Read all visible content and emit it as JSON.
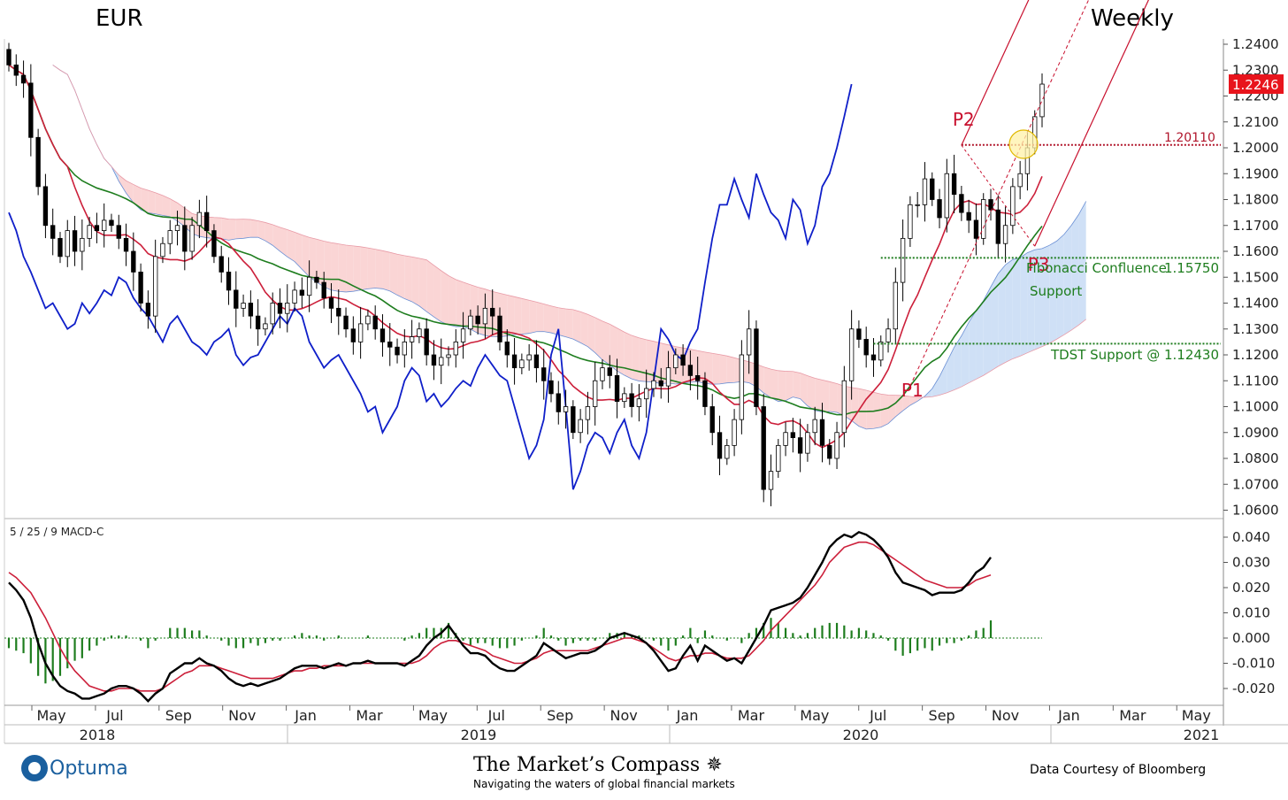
{
  "header": {
    "symbol": "EUR",
    "period": "Weekly"
  },
  "footer": {
    "logo": "Optuma",
    "brand_title": "The Market’s Compass",
    "brand_subtitle": "Navigating the waters of global financial markets",
    "credit": "Data Courtesy of Bloomberg"
  },
  "colors": {
    "price_up": "#ffffff",
    "price_down": "#000000",
    "tenkan": "#cc1f3a",
    "kijun": "#1e7d1e",
    "chikou": "#0f1fc9",
    "cloud_bull": "#cfe0f6",
    "cloud_bear": "#fad5d5",
    "pitchfork": "#c8102e",
    "macd_line": "#000000",
    "signal_line": "#cc1f3a",
    "histogram": "#1e7d1e",
    "last_price_bg": "#e8141c"
  },
  "chart_data": [
    {
      "type": "candlestick",
      "title": "EUR",
      "period": "Weekly",
      "ylim": [
        1.058,
        1.243
      ],
      "yticks": [
        "1.0600",
        "1.0700",
        "1.0800",
        "1.0900",
        "1.1000",
        "1.1100",
        "1.1200",
        "1.1300",
        "1.1400",
        "1.1500",
        "1.1600",
        "1.1700",
        "1.1800",
        "1.1900",
        "1.2000",
        "1.2100",
        "1.2200",
        "1.2300",
        "1.2400"
      ],
      "x_month_labels": [
        "May",
        "Jul",
        "Sep",
        "Nov",
        "Jan",
        "Mar",
        "May",
        "Jul",
        "Sep",
        "Nov",
        "Jan",
        "Mar",
        "May",
        "Jul",
        "Sep",
        "Nov",
        "Jan",
        "Mar",
        "May"
      ],
      "x_year_labels": [
        "2018",
        "2019",
        "2020",
        "2021"
      ],
      "x_range": [
        "2018-04",
        "2021-06"
      ],
      "last_price": "1.2246",
      "candles_close": [
        1.232,
        1.228,
        1.225,
        1.204,
        1.185,
        1.17,
        1.165,
        1.158,
        1.168,
        1.16,
        1.165,
        1.17,
        1.168,
        1.172,
        1.17,
        1.165,
        1.16,
        1.152,
        1.14,
        1.135,
        1.158,
        1.163,
        1.168,
        1.17,
        1.16,
        1.17,
        1.175,
        1.168,
        1.158,
        1.152,
        1.145,
        1.138,
        1.14,
        1.135,
        1.13,
        1.132,
        1.14,
        1.136,
        1.14,
        1.145,
        1.143,
        1.15,
        1.148,
        1.142,
        1.138,
        1.135,
        1.13,
        1.125,
        1.132,
        1.135,
        1.13,
        1.125,
        1.123,
        1.12,
        1.125,
        1.127,
        1.13,
        1.12,
        1.116,
        1.119,
        1.12,
        1.125,
        1.13,
        1.135,
        1.132,
        1.138,
        1.135,
        1.125,
        1.12,
        1.115,
        1.118,
        1.12,
        1.115,
        1.11,
        1.105,
        1.098,
        1.1,
        1.09,
        1.095,
        1.1,
        1.11,
        1.115,
        1.112,
        1.102,
        1.105,
        1.1,
        1.103,
        1.107,
        1.11,
        1.108,
        1.115,
        1.12,
        1.116,
        1.112,
        1.11,
        1.1,
        1.09,
        1.08,
        1.085,
        1.095,
        1.12,
        1.13,
        1.1,
        1.068,
        1.075,
        1.085,
        1.09,
        1.088,
        1.082,
        1.09,
        1.095,
        1.085,
        1.08,
        1.09,
        1.11,
        1.13,
        1.126,
        1.12,
        1.118,
        1.125,
        1.13,
        1.148,
        1.165,
        1.178,
        1.178,
        1.188,
        1.18,
        1.173,
        1.19,
        1.182,
        1.175,
        1.172,
        1.165,
        1.18,
        1.176,
        1.163,
        1.17,
        1.185,
        1.19,
        1.2,
        1.212,
        1.2246
      ],
      "ichimoku": {
        "tenkan_sen": "red line",
        "kijun_sen": "green line",
        "chikou_span": "blue line",
        "cloud": "blue (bullish) / red (bearish) shaded area"
      },
      "annotations": [
        {
          "text": "P1",
          "kind": "pitchfork pivot"
        },
        {
          "text": "P2",
          "kind": "pitchfork pivot"
        },
        {
          "text": "P3",
          "kind": "pitchfork pivot"
        },
        {
          "text": "1.20110",
          "kind": "horizontal level",
          "value": 1.2011
        },
        {
          "text": "Fibonacci Confluence",
          "kind": "support label"
        },
        {
          "text": "Support",
          "kind": "support label"
        },
        {
          "text": "1.15750",
          "kind": "horizontal level",
          "value": 1.1575
        },
        {
          "text": "TDST Support @ 1.12430",
          "kind": "horizontal level",
          "value": 1.1243
        }
      ]
    },
    {
      "type": "line",
      "title": "5 / 25 / 9 MACD-C",
      "ylim": [
        -0.027,
        0.047
      ],
      "yticks": [
        "0.040",
        "0.030",
        "0.020",
        "0.010",
        "0.000",
        "-0.010",
        "-0.020"
      ],
      "series": [
        {
          "name": "MACD",
          "role": "macd",
          "values": [
            0.022,
            0.019,
            0.015,
            0.008,
            -0.002,
            -0.01,
            -0.015,
            -0.019,
            -0.021,
            -0.022,
            -0.024,
            -0.024,
            -0.023,
            -0.022,
            -0.02,
            -0.019,
            -0.019,
            -0.02,
            -0.022,
            -0.025,
            -0.022,
            -0.02,
            -0.014,
            -0.012,
            -0.01,
            -0.01,
            -0.008,
            -0.01,
            -0.011,
            -0.013,
            -0.016,
            -0.018,
            -0.019,
            -0.018,
            -0.019,
            -0.018,
            -0.017,
            -0.016,
            -0.014,
            -0.012,
            -0.011,
            -0.011,
            -0.011,
            -0.012,
            -0.011,
            -0.01,
            -0.011,
            -0.01,
            -0.01,
            -0.009,
            -0.01,
            -0.01,
            -0.01,
            -0.01,
            -0.011,
            -0.009,
            -0.007,
            -0.003,
            -0.0,
            0.002,
            0.005,
            0.001,
            -0.003,
            -0.006,
            -0.006,
            -0.007,
            -0.01,
            -0.012,
            -0.013,
            -0.013,
            -0.011,
            -0.009,
            -0.007,
            -0.002,
            -0.004,
            -0.006,
            -0.008,
            -0.007,
            -0.006,
            -0.006,
            -0.005,
            -0.003,
            -0.0,
            0.001,
            0.002,
            0.001,
            -0.0,
            -0.002,
            -0.005,
            -0.009,
            -0.013,
            -0.012,
            -0.007,
            -0.003,
            -0.009,
            -0.003,
            -0.005,
            -0.007,
            -0.009,
            -0.008,
            -0.01,
            -0.005,
            0.0,
            0.005,
            0.011,
            0.012,
            0.013,
            0.014,
            0.016,
            0.02,
            0.025,
            0.03,
            0.036,
            0.039,
            0.041,
            0.04,
            0.042,
            0.041,
            0.039,
            0.036,
            0.032,
            0.026,
            0.022,
            0.021,
            0.02,
            0.019,
            0.017,
            0.018,
            0.018,
            0.018,
            0.019,
            0.022,
            0.026,
            0.028,
            0.032
          ]
        },
        {
          "name": "Signal",
          "role": "signal",
          "values": [
            0.026,
            0.024,
            0.021,
            0.018,
            0.013,
            0.008,
            0.002,
            -0.004,
            -0.009,
            -0.013,
            -0.016,
            -0.019,
            -0.02,
            -0.021,
            -0.021,
            -0.02,
            -0.02,
            -0.02,
            -0.021,
            -0.021,
            -0.021,
            -0.02,
            -0.018,
            -0.016,
            -0.014,
            -0.013,
            -0.011,
            -0.011,
            -0.011,
            -0.012,
            -0.013,
            -0.014,
            -0.015,
            -0.016,
            -0.016,
            -0.016,
            -0.016,
            -0.015,
            -0.014,
            -0.013,
            -0.013,
            -0.012,
            -0.012,
            -0.011,
            -0.011,
            -0.011,
            -0.011,
            -0.01,
            -0.01,
            -0.01,
            -0.01,
            -0.01,
            -0.01,
            -0.01,
            -0.01,
            -0.01,
            -0.009,
            -0.007,
            -0.004,
            -0.002,
            -0.001,
            -0.001,
            -0.002,
            -0.003,
            -0.004,
            -0.005,
            -0.007,
            -0.008,
            -0.009,
            -0.01,
            -0.01,
            -0.009,
            -0.008,
            -0.006,
            -0.005,
            -0.005,
            -0.005,
            -0.005,
            -0.005,
            -0.005,
            -0.004,
            -0.003,
            -0.002,
            -0.001,
            -0.0,
            -0.0,
            -0.001,
            -0.002,
            -0.004,
            -0.006,
            -0.008,
            -0.009,
            -0.008,
            -0.007,
            -0.007,
            -0.006,
            -0.006,
            -0.007,
            -0.008,
            -0.008,
            -0.008,
            -0.007,
            -0.004,
            -0.001,
            0.003,
            0.006,
            0.009,
            0.012,
            0.015,
            0.018,
            0.021,
            0.025,
            0.03,
            0.033,
            0.036,
            0.037,
            0.038,
            0.038,
            0.037,
            0.035,
            0.033,
            0.031,
            0.029,
            0.027,
            0.025,
            0.023,
            0.022,
            0.021,
            0.02,
            0.02,
            0.02,
            0.021,
            0.023,
            0.024,
            0.025
          ]
        },
        {
          "name": "Histogram",
          "role": "histogram",
          "values": [
            -0.004,
            -0.005,
            -0.006,
            -0.01,
            -0.015,
            -0.018,
            -0.017,
            -0.015,
            -0.012,
            -0.009,
            -0.008,
            -0.005,
            -0.003,
            -0.001,
            0.001,
            0.001,
            0.001,
            0.0,
            -0.001,
            -0.004,
            -0.001,
            0.0,
            0.004,
            0.004,
            0.004,
            0.003,
            0.003,
            0.001,
            0.0,
            -0.001,
            -0.003,
            -0.004,
            -0.004,
            -0.002,
            -0.003,
            -0.002,
            -0.001,
            -0.001,
            0.0,
            0.001,
            0.002,
            0.001,
            0.001,
            -0.001,
            0.0,
            0.001,
            0.0,
            0.0,
            0.0,
            0.001,
            0.0,
            0.0,
            0.0,
            0.0,
            -0.001,
            0.001,
            0.002,
            0.004,
            0.004,
            0.004,
            0.006,
            0.002,
            -0.001,
            -0.003,
            -0.002,
            -0.002,
            -0.003,
            -0.004,
            -0.004,
            -0.003,
            -0.001,
            0.0,
            0.001,
            0.004,
            0.001,
            -0.001,
            -0.003,
            -0.002,
            -0.001,
            -0.001,
            -0.001,
            0.0,
            0.002,
            0.002,
            0.002,
            0.001,
            0.001,
            0.0,
            -0.001,
            -0.003,
            -0.005,
            -0.003,
            0.001,
            0.004,
            -0.002,
            0.003,
            0.001,
            0.0,
            -0.001,
            0.0,
            -0.002,
            0.002,
            0.004,
            0.006,
            0.008,
            0.006,
            0.004,
            0.002,
            0.001,
            0.002,
            0.004,
            0.005,
            0.006,
            0.006,
            0.005,
            0.003,
            0.004,
            0.003,
            0.002,
            0.001,
            -0.001,
            -0.005,
            -0.007,
            -0.006,
            -0.005,
            -0.004,
            -0.005,
            -0.003,
            -0.002,
            -0.002,
            -0.001,
            0.001,
            0.003,
            0.004,
            0.007
          ]
        }
      ]
    }
  ]
}
